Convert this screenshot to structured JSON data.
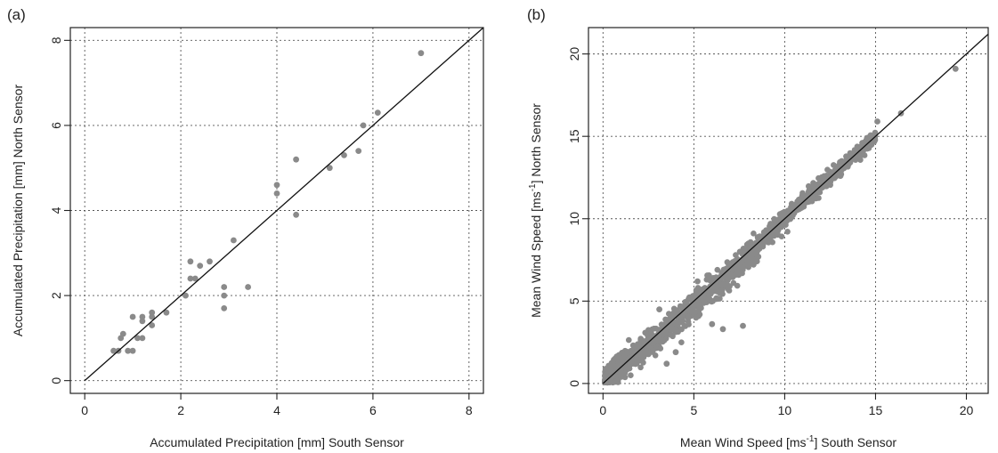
{
  "chart_data": [
    {
      "panel": "(a)",
      "type": "scatter",
      "xlabel": "Accumulated Precipitation [mm] South Sensor",
      "ylabel": "Accumulated Precipitation [mm] North Sensor",
      "xlim": [
        -0.3,
        8.3
      ],
      "ylim": [
        -0.3,
        8.3
      ],
      "xticks": [
        0,
        2,
        4,
        6,
        8
      ],
      "yticks": [
        0,
        2,
        4,
        6,
        8
      ],
      "grid": true,
      "reference_line": "1:1",
      "point_color": "#8a8a8a",
      "points": [
        [
          0.6,
          0.7
        ],
        [
          0.7,
          0.7
        ],
        [
          0.75,
          1.0
        ],
        [
          0.8,
          1.1
        ],
        [
          0.9,
          0.7
        ],
        [
          1.0,
          0.7
        ],
        [
          1.0,
          1.5
        ],
        [
          1.1,
          1.0
        ],
        [
          1.2,
          1.0
        ],
        [
          1.2,
          1.4
        ],
        [
          1.2,
          1.5
        ],
        [
          1.4,
          1.3
        ],
        [
          1.4,
          1.5
        ],
        [
          1.4,
          1.6
        ],
        [
          1.7,
          1.6
        ],
        [
          2.1,
          2.0
        ],
        [
          2.2,
          2.4
        ],
        [
          2.2,
          2.8
        ],
        [
          2.3,
          2.4
        ],
        [
          2.4,
          2.7
        ],
        [
          2.6,
          2.8
        ],
        [
          2.9,
          1.7
        ],
        [
          2.9,
          2.0
        ],
        [
          2.9,
          2.2
        ],
        [
          3.1,
          3.3
        ],
        [
          3.4,
          2.2
        ],
        [
          4.0,
          4.4
        ],
        [
          4.0,
          4.6
        ],
        [
          4.4,
          3.9
        ],
        [
          4.4,
          5.2
        ],
        [
          5.1,
          5.0
        ],
        [
          5.4,
          5.3
        ],
        [
          5.7,
          5.4
        ],
        [
          5.8,
          6.0
        ],
        [
          6.1,
          6.3
        ],
        [
          7.0,
          7.7
        ]
      ]
    },
    {
      "panel": "(b)",
      "type": "scatter",
      "xlabel_main": "Mean Wind Speed [ms",
      "xlabel_sup": "-1",
      "xlabel_tail": "] South Sensor",
      "ylabel_main": "Mean Wind Speed [ms",
      "ylabel_sup": "-1",
      "ylabel_tail": "] North Sensor",
      "xlim": [
        -0.8,
        21.2
      ],
      "ylim": [
        -0.6,
        21.6
      ],
      "xticks": [
        0,
        5,
        10,
        15,
        20
      ],
      "yticks": [
        0,
        5,
        10,
        15,
        20
      ],
      "grid": true,
      "reference_line": "1:1",
      "point_color": "#8a8a8a",
      "cloud": {
        "description": "dense band of points scattered around the 1:1 line",
        "x_range": [
          0.1,
          15.2
        ],
        "spread": "widens toward low speeds, slight underestimation by north sensor between 3 and 8"
      },
      "outliers": [
        [
          3.1,
          4.5
        ],
        [
          5.2,
          6.2
        ],
        [
          6.0,
          3.6
        ],
        [
          6.6,
          3.3
        ],
        [
          7.7,
          3.5
        ],
        [
          3.5,
          1.2
        ],
        [
          4.0,
          1.9
        ],
        [
          14.7,
          15.0
        ],
        [
          15.1,
          15.9
        ],
        [
          16.4,
          16.4
        ],
        [
          19.4,
          19.1
        ]
      ]
    }
  ]
}
